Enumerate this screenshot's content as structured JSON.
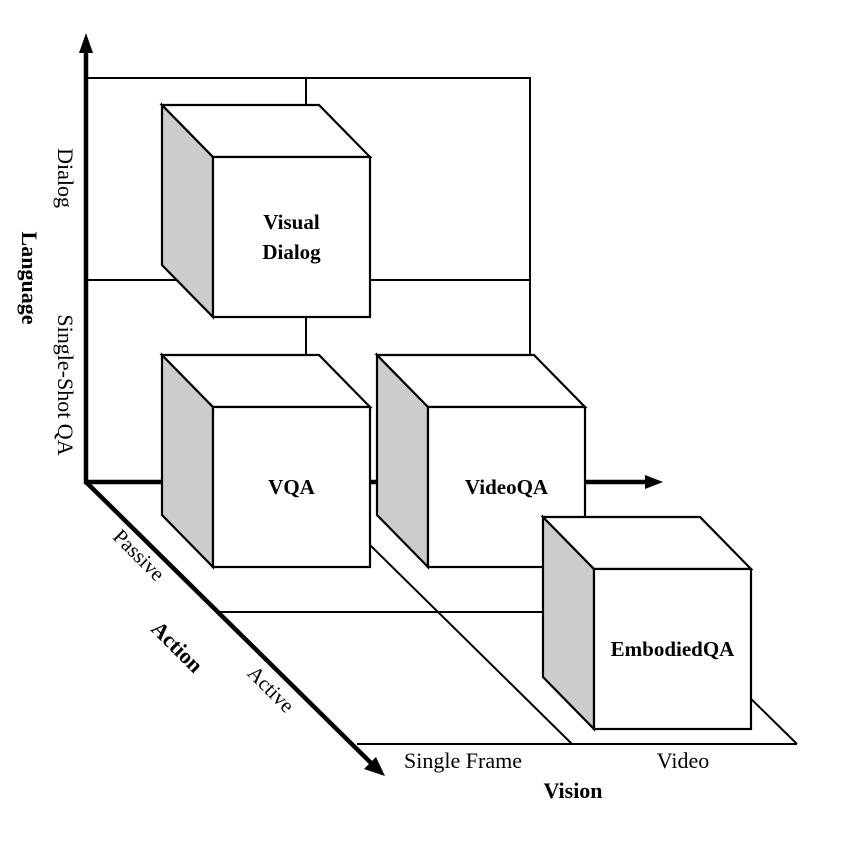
{
  "axes": {
    "language": {
      "title": "Language",
      "levels": [
        "Single-Shot QA",
        "Dialog"
      ]
    },
    "vision": {
      "title": "Vision",
      "levels": [
        "Single Frame",
        "Video"
      ]
    },
    "action": {
      "title": "Action",
      "levels": [
        "Passive",
        "Active"
      ]
    }
  },
  "cubes": [
    {
      "label_lines": [
        "Visual",
        "Dialog"
      ],
      "language": "Dialog",
      "vision": "Single Frame",
      "action": "Passive"
    },
    {
      "label_lines": [
        "VQA"
      ],
      "language": "Single-Shot QA",
      "vision": "Single Frame",
      "action": "Passive"
    },
    {
      "label_lines": [
        "VideoQA"
      ],
      "language": "Single-Shot QA",
      "vision": "Video",
      "action": "Passive"
    },
    {
      "label_lines": [
        "EmbodiedQA"
      ],
      "language": "Single-Shot QA",
      "vision": "Video",
      "action": "Active"
    }
  ],
  "colors": {
    "cube_side": "#cccccc",
    "line": "#000000",
    "background": "#ffffff"
  }
}
